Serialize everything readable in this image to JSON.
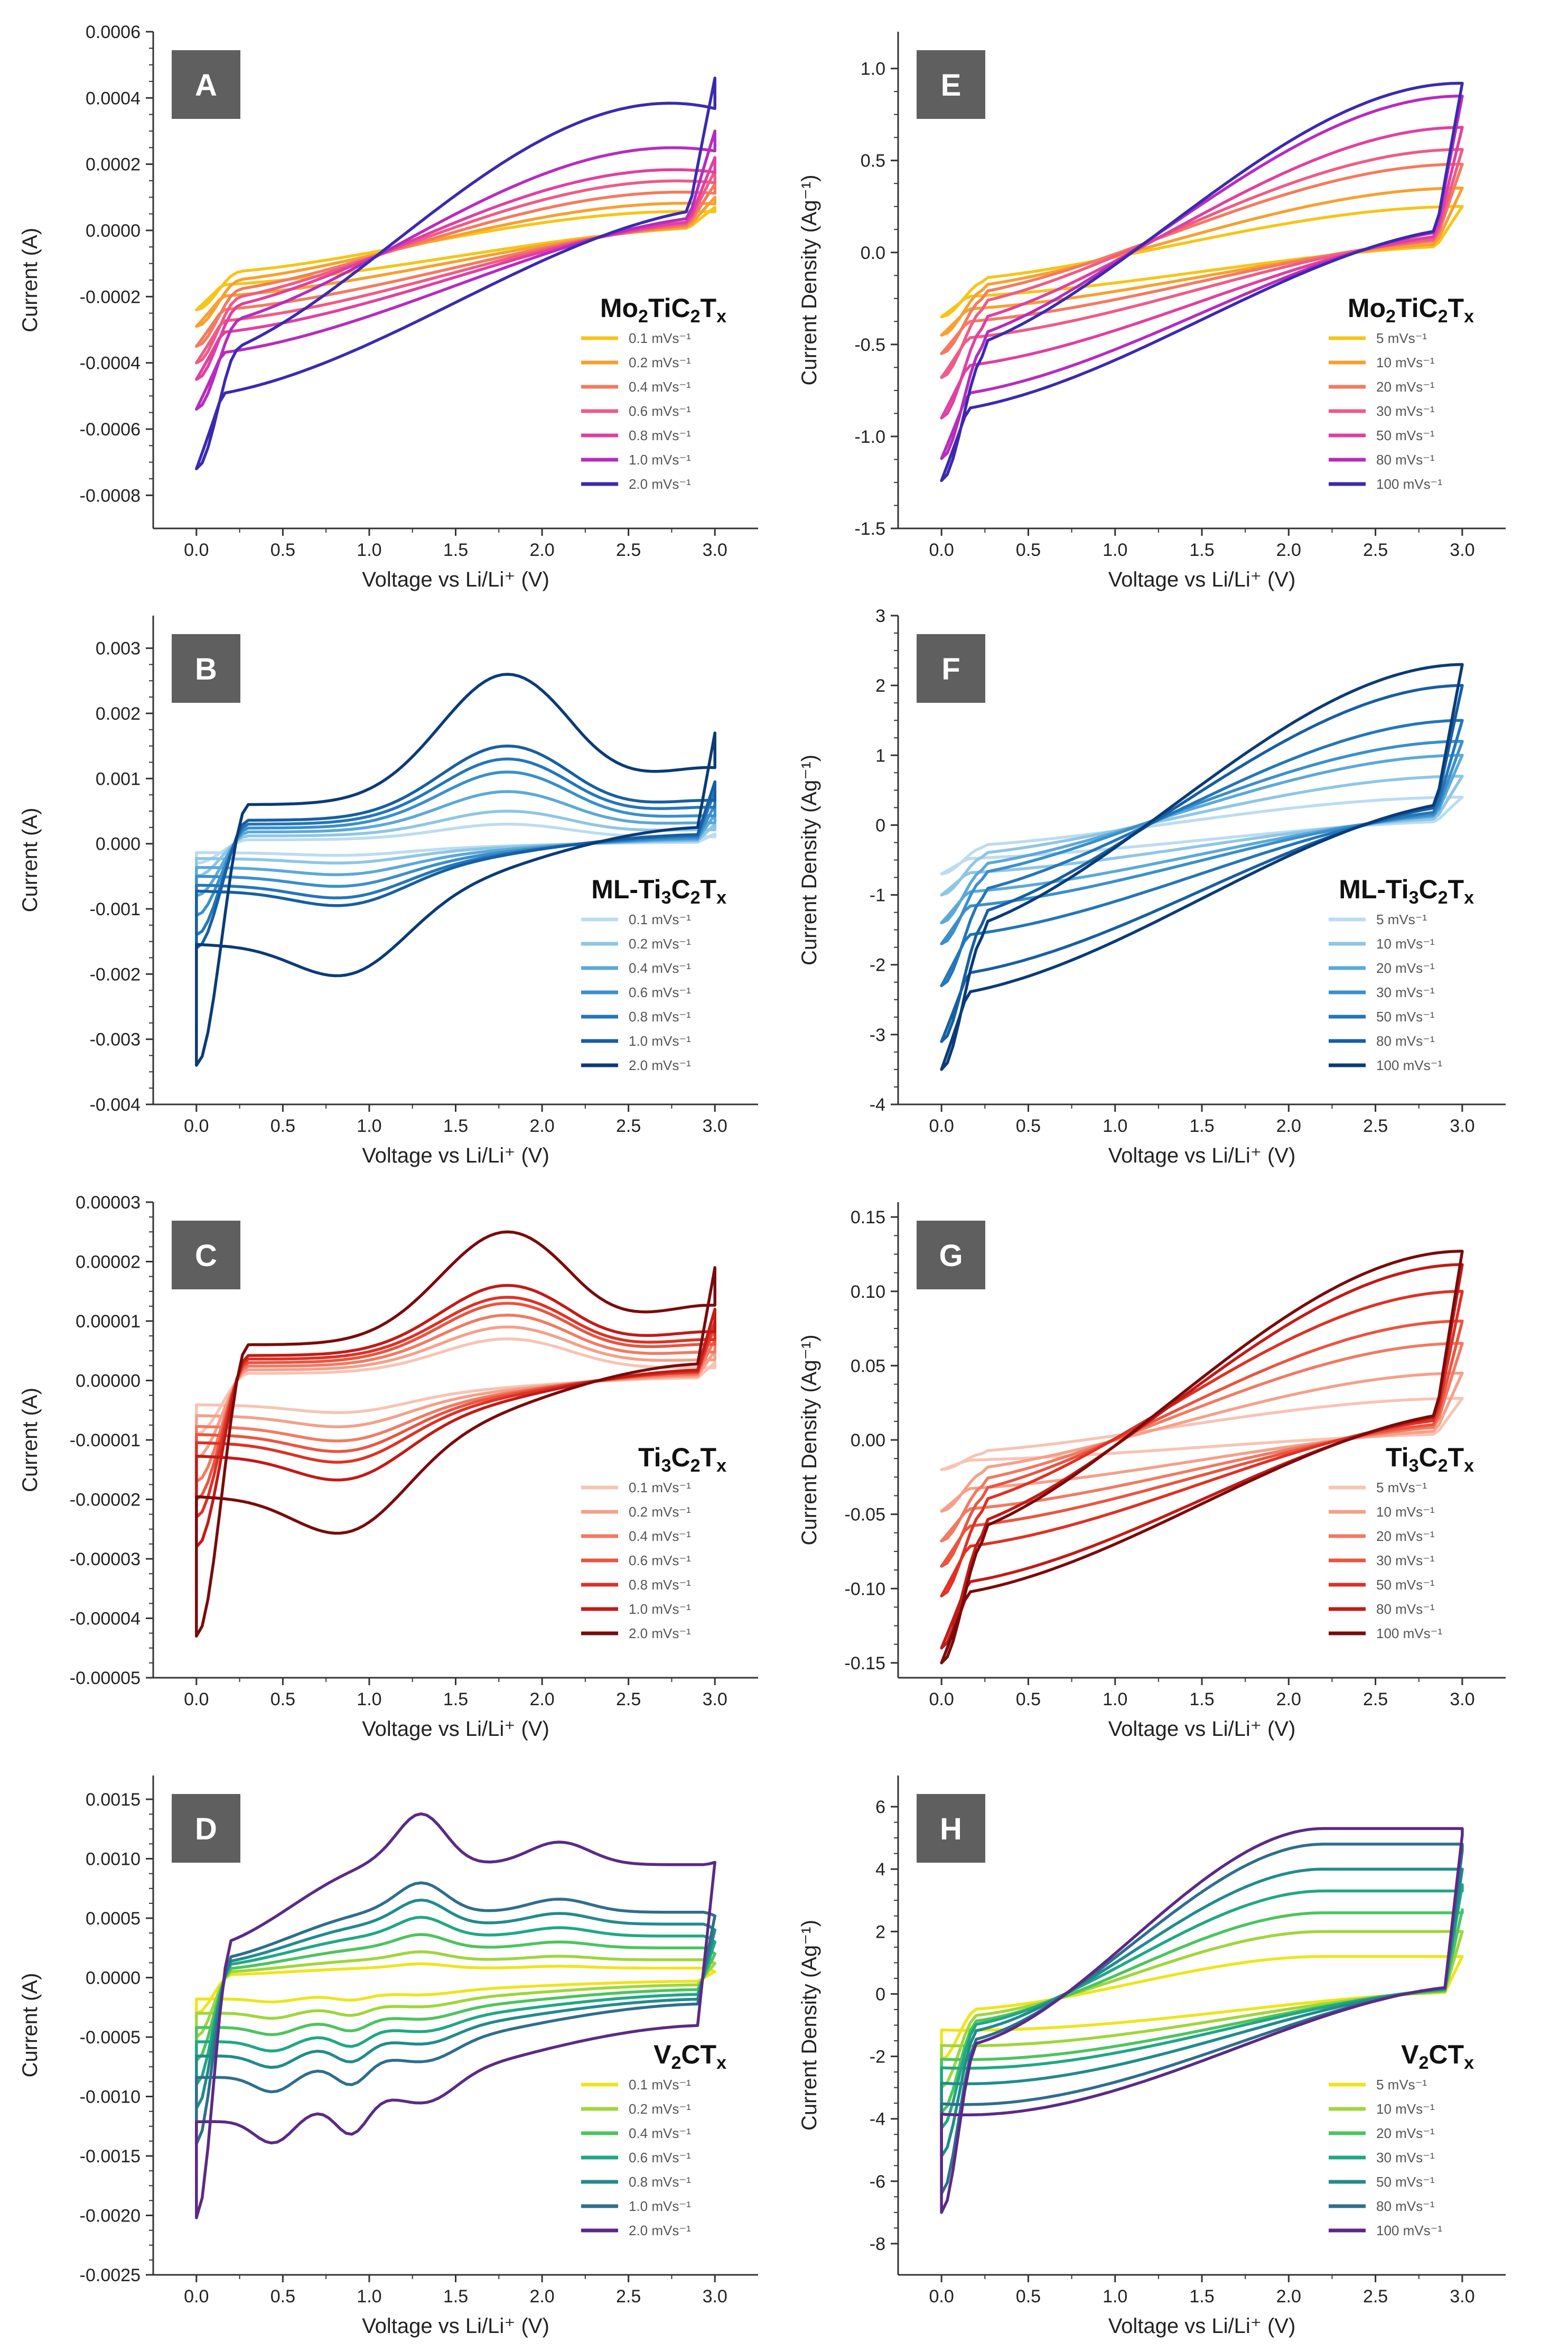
{
  "chart_data": [
    {
      "type": "line",
      "panel": "A",
      "material": "Mo2TiC2Tx",
      "material_parts": [
        [
          "Mo",
          "n"
        ],
        [
          "2",
          "s"
        ],
        [
          "TiC",
          "n"
        ],
        [
          "2",
          "s"
        ],
        [
          "T",
          "n"
        ],
        [
          "x",
          "s"
        ]
      ],
      "title": "",
      "xlabel": "Voltage vs Li/Li⁺ (V)",
      "ylabel": "Current (A)",
      "xlim": [
        -0.25,
        3.25
      ],
      "ylim": [
        -0.0009,
        0.0006
      ],
      "xticks": [
        "0.0",
        "0.5",
        "1.0",
        "1.5",
        "2.0",
        "2.5",
        "3.0"
      ],
      "yticks": [
        "-0.0008",
        "-0.0006",
        "-0.0004",
        "-0.0002",
        "0.0000",
        "0.0002",
        "0.0004",
        "0.0006"
      ],
      "legend_position": "bottom-right",
      "series": [
        {
          "name": "0.1 mVs⁻¹",
          "color": "#f5c518",
          "peak": 7e-05,
          "trough": -0.00024,
          "knee": 3e-05
        },
        {
          "name": "0.2 mVs⁻¹",
          "color": "#f7a030",
          "peak": 0.0001,
          "trough": -0.00029,
          "knee": 4e-05
        },
        {
          "name": "0.4 mVs⁻¹",
          "color": "#f47a5f",
          "peak": 0.00014,
          "trough": -0.00035,
          "knee": 6e-05
        },
        {
          "name": "0.6 mVs⁻¹",
          "color": "#ef5b86",
          "peak": 0.00018,
          "trough": -0.0004,
          "knee": 8e-05
        },
        {
          "name": "0.8 mVs⁻¹",
          "color": "#e040a0",
          "peak": 0.00022,
          "trough": -0.00045,
          "knee": 0.0001
        },
        {
          "name": "1.0 mVs⁻¹",
          "color": "#b62cbf",
          "peak": 0.0003,
          "trough": -0.00054,
          "knee": 0.00013
        },
        {
          "name": "2.0 mVs⁻¹",
          "color": "#3b2ab0",
          "peak": 0.00046,
          "trough": -0.00072,
          "knee": 0.0002
        }
      ]
    },
    {
      "type": "line",
      "panel": "E",
      "material": "Mo2TiC2Tx",
      "material_parts": [
        [
          "Mo",
          "n"
        ],
        [
          "2",
          "s"
        ],
        [
          "TiC",
          "n"
        ],
        [
          "2",
          "s"
        ],
        [
          "T",
          "n"
        ],
        [
          "x",
          "s"
        ]
      ],
      "title": "",
      "xlabel": "Voltage vs Li/Li⁺ (V)",
      "ylabel": "Current Density (Ag⁻¹)",
      "xlim": [
        -0.25,
        3.25
      ],
      "ylim": [
        -1.5,
        1.2
      ],
      "xticks": [
        "0.0",
        "0.5",
        "1.0",
        "1.5",
        "2.0",
        "2.5",
        "3.0"
      ],
      "yticks": [
        "-1.5",
        "-1.0",
        "-0.5",
        "0.0",
        "0.5",
        "1.0"
      ],
      "legend_position": "bottom-right",
      "series": [
        {
          "name": "5 mVs⁻¹",
          "color": "#f5c518",
          "peak": 0.25,
          "trough": -0.35,
          "knee": 0.12
        },
        {
          "name": "10 mVs⁻¹",
          "color": "#f7a030",
          "peak": 0.35,
          "trough": -0.45,
          "knee": 0.17
        },
        {
          "name": "20 mVs⁻¹",
          "color": "#f47a5f",
          "peak": 0.48,
          "trough": -0.55,
          "knee": 0.23
        },
        {
          "name": "30 mVs⁻¹",
          "color": "#ef5b86",
          "peak": 0.56,
          "trough": -0.68,
          "knee": 0.28
        },
        {
          "name": "50 mVs⁻¹",
          "color": "#e040a0",
          "peak": 0.68,
          "trough": -0.9,
          "knee": 0.35
        },
        {
          "name": "80 mVs⁻¹",
          "color": "#b62cbf",
          "peak": 0.85,
          "trough": -1.12,
          "knee": 0.45
        },
        {
          "name": "100 mVs⁻¹",
          "color": "#3b2ab0",
          "peak": 0.92,
          "trough": -1.24,
          "knee": 0.5
        }
      ]
    },
    {
      "type": "line",
      "panel": "B",
      "material": "ML-Ti3C2Tx",
      "material_parts": [
        [
          "ML-Ti",
          "n"
        ],
        [
          "3",
          "s"
        ],
        [
          "C",
          "n"
        ],
        [
          "2",
          "s"
        ],
        [
          "T",
          "n"
        ],
        [
          "x",
          "s"
        ]
      ],
      "title": "",
      "xlabel": "Voltage vs Li/Li⁺ (V)",
      "ylabel": "Current (A)",
      "xlim": [
        -0.25,
        3.25
      ],
      "ylim": [
        -0.004,
        0.0035
      ],
      "xticks": [
        "0.0",
        "0.5",
        "1.0",
        "1.5",
        "2.0",
        "2.5",
        "3.0"
      ],
      "yticks": [
        "-0.004",
        "-0.003",
        "-0.002",
        "-0.001",
        "0.000",
        "0.001",
        "0.002",
        "0.003"
      ],
      "legend_position": "bottom-right",
      "series": [
        {
          "name": "0.1 mVs⁻¹",
          "color": "#bcdcf0",
          "peak": 0.00015,
          "trough": -0.0003,
          "hump": 0.0003,
          "knee": 0.0001
        },
        {
          "name": "0.2 mVs⁻¹",
          "color": "#8ec6e6",
          "peak": 0.0003,
          "trough": -0.0005,
          "hump": 0.0005,
          "knee": 0.0002
        },
        {
          "name": "0.4 mVs⁻¹",
          "color": "#5ba9d8",
          "peak": 0.00045,
          "trough": -0.0008,
          "hump": 0.0008,
          "knee": 0.0003
        },
        {
          "name": "0.6 mVs⁻¹",
          "color": "#3a8fcb",
          "peak": 0.0006,
          "trough": -0.0011,
          "hump": 0.0011,
          "knee": 0.0004
        },
        {
          "name": "0.8 mVs⁻¹",
          "color": "#2476b9",
          "peak": 0.0008,
          "trough": -0.0014,
          "hump": 0.0013,
          "knee": 0.0005
        },
        {
          "name": "1.0 mVs⁻¹",
          "color": "#175fa2",
          "peak": 0.00095,
          "trough": -0.0016,
          "hump": 0.0015,
          "knee": 0.0006
        },
        {
          "name": "2.0 mVs⁻¹",
          "color": "#0b3b78",
          "peak": 0.0017,
          "trough": -0.0034,
          "hump": 0.0026,
          "knee": 0.001
        }
      ]
    },
    {
      "type": "line",
      "panel": "F",
      "material": "ML-Ti3C2Tx",
      "material_parts": [
        [
          "ML-Ti",
          "n"
        ],
        [
          "3",
          "s"
        ],
        [
          "C",
          "n"
        ],
        [
          "2",
          "s"
        ],
        [
          "T",
          "n"
        ],
        [
          "x",
          "s"
        ]
      ],
      "title": "",
      "xlabel": "Voltage vs Li/Li⁺ (V)",
      "ylabel": "Current Density (Ag⁻¹)",
      "xlim": [
        -0.25,
        3.25
      ],
      "ylim": [
        -4,
        3
      ],
      "xticks": [
        "0.0",
        "0.5",
        "1.0",
        "1.5",
        "2.0",
        "2.5",
        "3.0"
      ],
      "yticks": [
        "-4",
        "-3",
        "-2",
        "-1",
        "0",
        "1",
        "2",
        "3"
      ],
      "legend_position": "bottom-right",
      "series": [
        {
          "name": "5 mVs⁻¹",
          "color": "#bcdcf0",
          "peak": 0.4,
          "trough": -0.7,
          "knee": 0.2
        },
        {
          "name": "10 mVs⁻¹",
          "color": "#8ec6e6",
          "peak": 0.7,
          "trough": -1.0,
          "knee": 0.3
        },
        {
          "name": "20 mVs⁻¹",
          "color": "#5ba9d8",
          "peak": 1.0,
          "trough": -1.4,
          "knee": 0.45
        },
        {
          "name": "30 mVs⁻¹",
          "color": "#3a8fcb",
          "peak": 1.2,
          "trough": -1.7,
          "knee": 0.55
        },
        {
          "name": "50 mVs⁻¹",
          "color": "#2476b9",
          "peak": 1.5,
          "trough": -2.3,
          "knee": 0.7
        },
        {
          "name": "80 mVs⁻¹",
          "color": "#175fa2",
          "peak": 2.0,
          "trough": -3.1,
          "knee": 0.95
        },
        {
          "name": "100 mVs⁻¹",
          "color": "#0b3b78",
          "peak": 2.3,
          "trough": -3.5,
          "knee": 1.1
        }
      ]
    },
    {
      "type": "line",
      "panel": "C",
      "material": "Ti3C2Tx",
      "material_parts": [
        [
          "Ti",
          "n"
        ],
        [
          "3",
          "s"
        ],
        [
          "C",
          "n"
        ],
        [
          "2",
          "s"
        ],
        [
          "T",
          "n"
        ],
        [
          "x",
          "s"
        ]
      ],
      "title": "",
      "xlabel": "Voltage vs Li/Li⁺ (V)",
      "ylabel": "Current (A)",
      "xlim": [
        -0.25,
        3.25
      ],
      "ylim": [
        -5e-05,
        3e-05
      ],
      "xticks": [
        "0.0",
        "0.5",
        "1.0",
        "1.5",
        "2.0",
        "2.5",
        "3.0"
      ],
      "yticks": [
        "-0.00005",
        "-0.00004",
        "-0.00003",
        "-0.00002",
        "-0.00001",
        "0.00000",
        "0.00001",
        "0.00002",
        "0.00003"
      ],
      "legend_position": "bottom-right",
      "series": [
        {
          "name": "0.1 mVs⁻¹",
          "color": "#f7c4b4",
          "peak": 3e-06,
          "trough": -9e-06,
          "hump": 7e-06,
          "knee": 2e-06
        },
        {
          "name": "0.2 mVs⁻¹",
          "color": "#f4a08a",
          "peak": 5e-06,
          "trough": -1.3e-05,
          "hump": 9e-06,
          "knee": 3e-06
        },
        {
          "name": "0.4 mVs⁻¹",
          "color": "#f17a62",
          "peak": 7e-06,
          "trough": -1.7e-05,
          "hump": 1.1e-05,
          "knee": 4e-06
        },
        {
          "name": "0.6 mVs⁻¹",
          "color": "#ea5440",
          "peak": 9e-06,
          "trough": -2e-05,
          "hump": 1.3e-05,
          "knee": 5e-06
        },
        {
          "name": "0.8 mVs⁻¹",
          "color": "#dd3225",
          "peak": 1e-05,
          "trough": -2.3e-05,
          "hump": 1.4e-05,
          "knee": 6e-06
        },
        {
          "name": "1.0 mVs⁻¹",
          "color": "#c21b17",
          "peak": 1.2e-05,
          "trough": -2.8e-05,
          "hump": 1.6e-05,
          "knee": 7e-06
        },
        {
          "name": "2.0 mVs⁻¹",
          "color": "#7a0b0b",
          "peak": 1.9e-05,
          "trough": -4.3e-05,
          "hump": 2.5e-05,
          "knee": 1e-05
        }
      ]
    },
    {
      "type": "line",
      "panel": "G",
      "material": "Ti3C2Tx",
      "material_parts": [
        [
          "Ti",
          "n"
        ],
        [
          "3",
          "s"
        ],
        [
          "C",
          "n"
        ],
        [
          "2",
          "s"
        ],
        [
          "T",
          "n"
        ],
        [
          "x",
          "s"
        ]
      ],
      "title": "",
      "xlabel": "Voltage vs Li/Li⁺ (V)",
      "ylabel": "Current Density (Ag⁻¹)",
      "xlim": [
        -0.25,
        3.25
      ],
      "ylim": [
        -0.16,
        0.16
      ],
      "xticks": [
        "0.0",
        "0.5",
        "1.0",
        "1.5",
        "2.0",
        "2.5",
        "3.0"
      ],
      "yticks": [
        "-0.15",
        "-0.10",
        "-0.05",
        "0.00",
        "0.05",
        "0.10",
        "0.15"
      ],
      "legend_position": "bottom-right",
      "series": [
        {
          "name": "5 mVs⁻¹",
          "color": "#f7c4b4",
          "peak": 0.028,
          "trough": -0.02,
          "knee": 0.01
        },
        {
          "name": "10 mVs⁻¹",
          "color": "#f4a08a",
          "peak": 0.045,
          "trough": -0.048,
          "knee": 0.018
        },
        {
          "name": "20 mVs⁻¹",
          "color": "#f17a62",
          "peak": 0.065,
          "trough": -0.068,
          "knee": 0.028
        },
        {
          "name": "30 mVs⁻¹",
          "color": "#ea5440",
          "peak": 0.08,
          "trough": -0.085,
          "knee": 0.036
        },
        {
          "name": "50 mVs⁻¹",
          "color": "#dd3225",
          "peak": 0.1,
          "trough": -0.105,
          "knee": 0.045
        },
        {
          "name": "80 mVs⁻¹",
          "color": "#c21b17",
          "peak": 0.118,
          "trough": -0.14,
          "knee": 0.055
        },
        {
          "name": "100 mVs⁻¹",
          "color": "#7a0b0b",
          "peak": 0.127,
          "trough": -0.15,
          "knee": 0.06
        }
      ]
    },
    {
      "type": "line",
      "panel": "D",
      "material": "V2CTx",
      "material_parts": [
        [
          "V",
          "n"
        ],
        [
          "2",
          "s"
        ],
        [
          "CT",
          "n"
        ],
        [
          "x",
          "s"
        ]
      ],
      "title": "",
      "xlabel": "Voltage vs Li/Li⁺ (V)",
      "ylabel": "Current (A)",
      "xlim": [
        -0.25,
        3.25
      ],
      "ylim": [
        -0.0025,
        0.0017
      ],
      "xticks": [
        "0.0",
        "0.5",
        "1.0",
        "1.5",
        "2.0",
        "2.5",
        "3.0"
      ],
      "yticks": [
        "-0.0025",
        "-0.0020",
        "-0.0015",
        "-0.0010",
        "-0.0005",
        "0.0000",
        "0.0005",
        "0.0010",
        "0.0015"
      ],
      "legend_position": "bottom-right",
      "series": [
        {
          "name": "0.1 mVs⁻¹",
          "color": "#ede51c",
          "peak": 5e-05,
          "trough": -0.0003,
          "plateau": 8e-05,
          "redox": 3e-05,
          "knee": 2e-05
        },
        {
          "name": "0.2 mVs⁻¹",
          "color": "#9fd63a",
          "peak": 0.00012,
          "trough": -0.0005,
          "plateau": 0.00015,
          "redox": 6e-05,
          "knee": 4e-05
        },
        {
          "name": "0.4 mVs⁻¹",
          "color": "#4cc45e",
          "peak": 0.0002,
          "trough": -0.0007,
          "plateau": 0.00025,
          "redox": 0.0001,
          "knee": 6e-05
        },
        {
          "name": "0.6 mVs⁻¹",
          "color": "#1fa884",
          "peak": 0.0003,
          "trough": -0.0009,
          "plateau": 0.00035,
          "redox": 0.00014,
          "knee": 9e-05
        },
        {
          "name": "0.8 mVs⁻¹",
          "color": "#218b8d",
          "peak": 0.0004,
          "trough": -0.0011,
          "plateau": 0.00045,
          "redox": 0.00018,
          "knee": 0.00011
        },
        {
          "name": "1.0 mVs⁻¹",
          "color": "#2f6e8e",
          "peak": 0.00052,
          "trough": -0.0014,
          "plateau": 0.00055,
          "redox": 0.00022,
          "knee": 0.00014
        },
        {
          "name": "2.0 mVs⁻¹",
          "color": "#5b2a86",
          "peak": 0.00097,
          "trough": -0.00202,
          "plateau": 0.00095,
          "redox": 0.0004,
          "knee": 0.00025
        }
      ]
    },
    {
      "type": "line",
      "panel": "H",
      "material": "V2CTx",
      "material_parts": [
        [
          "V",
          "n"
        ],
        [
          "2",
          "s"
        ],
        [
          "CT",
          "n"
        ],
        [
          "x",
          "s"
        ]
      ],
      "title": "",
      "xlabel": "Voltage vs Li/Li⁺ (V)",
      "ylabel": "Current Density (Ag⁻¹)",
      "xlim": [
        -0.25,
        3.25
      ],
      "ylim": [
        -9,
        7
      ],
      "xticks": [
        "0.0",
        "0.5",
        "1.0",
        "1.5",
        "2.0",
        "2.5",
        "3.0"
      ],
      "yticks": [
        "-8",
        "-6",
        "-4",
        "-2",
        "0",
        "2",
        "4",
        "6"
      ],
      "legend_position": "bottom-right",
      "series": [
        {
          "name": "5 mVs⁻¹",
          "color": "#ede51c",
          "peak": 1.2,
          "trough": -2.1,
          "plateau": 1.2,
          "knee": 0.3
        },
        {
          "name": "10 mVs⁻¹",
          "color": "#9fd63a",
          "peak": 2.0,
          "trough": -3.0,
          "plateau": 2.0,
          "knee": 0.5
        },
        {
          "name": "20 mVs⁻¹",
          "color": "#4cc45e",
          "peak": 2.7,
          "trough": -3.8,
          "plateau": 2.6,
          "knee": 0.7
        },
        {
          "name": "30 mVs⁻¹",
          "color": "#1fa884",
          "peak": 3.5,
          "trough": -4.3,
          "plateau": 3.3,
          "knee": 0.9
        },
        {
          "name": "50 mVs⁻¹",
          "color": "#218b8d",
          "peak": 4.0,
          "trough": -5.2,
          "plateau": 4.0,
          "knee": 1.0
        },
        {
          "name": "80 mVs⁻¹",
          "color": "#2f6e8e",
          "peak": 4.6,
          "trough": -6.4,
          "plateau": 4.8,
          "knee": 1.2
        },
        {
          "name": "100 mVs⁻¹",
          "color": "#5b2a86",
          "peak": 5.1,
          "trough": -7.0,
          "plateau": 5.3,
          "knee": 1.3
        }
      ]
    }
  ]
}
